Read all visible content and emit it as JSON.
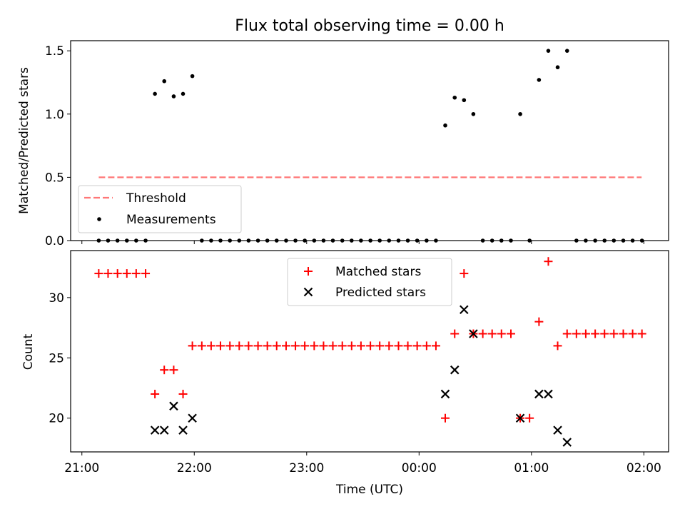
{
  "chart_data": [
    {
      "type": "scatter",
      "title": "Flux total observing time = 0.00 h",
      "xlabel": "",
      "ylabel": "Matched/Predicted stars",
      "ylim": [
        0,
        1.58
      ],
      "yticks": [
        0.0,
        0.5,
        1.0,
        1.5
      ],
      "ytick_labels": [
        "0.0",
        "0.5",
        "1.0",
        "1.5"
      ],
      "xticks_hours": [
        21,
        22,
        23,
        24,
        25,
        26
      ],
      "xlim_hours": [
        20.9,
        26.22
      ],
      "grid": false,
      "legend": "lower-left",
      "threshold": {
        "name": "Threshold",
        "value": 0.5,
        "x_range_hours": [
          21.15,
          25.98
        ],
        "color": "#ff7777"
      },
      "series": [
        {
          "name": "Measurements",
          "color": "#000000",
          "x_hours": [
            21.15,
            21.233,
            21.317,
            21.4,
            21.483,
            21.567,
            21.65,
            21.733,
            21.817,
            21.9,
            21.983,
            22.067,
            22.15,
            22.233,
            22.317,
            22.4,
            22.483,
            22.567,
            22.65,
            22.733,
            22.817,
            22.9,
            22.983,
            23.067,
            23.15,
            23.233,
            23.317,
            23.4,
            23.483,
            23.567,
            23.65,
            23.733,
            23.817,
            23.9,
            23.983,
            24.067,
            24.15,
            24.233,
            24.317,
            24.4,
            24.483,
            24.567,
            24.65,
            24.733,
            24.817,
            24.9,
            24.983,
            25.067,
            25.15,
            25.233,
            25.317,
            25.4,
            25.483,
            25.567,
            25.65,
            25.733,
            25.817,
            25.9,
            25.983
          ],
          "values": [
            0,
            0,
            0,
            0,
            0,
            0,
            1.16,
            1.26,
            1.14,
            1.16,
            1.3,
            0,
            0,
            0,
            0,
            0,
            0,
            0,
            0,
            0,
            0,
            0,
            0,
            0,
            0,
            0,
            0,
            0,
            0,
            0,
            0,
            0,
            0,
            0,
            0,
            0,
            0,
            0.91,
            1.13,
            1.11,
            1.0,
            0,
            0,
            0,
            0,
            1.0,
            0,
            1.27,
            1.5,
            1.37,
            1.5,
            0,
            0,
            0,
            0,
            0,
            0,
            0,
            0
          ]
        }
      ]
    },
    {
      "type": "scatter",
      "title": "",
      "xlabel": "Time (UTC)",
      "ylabel": "Count",
      "ylim": [
        17.2,
        33.9
      ],
      "yticks": [
        20,
        25,
        30
      ],
      "ytick_labels": [
        "20",
        "25",
        "30"
      ],
      "xticks_hours": [
        21,
        22,
        23,
        24,
        25,
        26
      ],
      "xtick_labels": [
        "21:00",
        "22:00",
        "23:00",
        "00:00",
        "01:00",
        "02:00"
      ],
      "xlim_hours": [
        20.9,
        26.22
      ],
      "grid": false,
      "legend": "top-center",
      "series": [
        {
          "name": "Matched stars",
          "marker": "+",
          "color": "#ff0000",
          "x_hours": [
            21.15,
            21.233,
            21.317,
            21.4,
            21.483,
            21.567,
            21.65,
            21.733,
            21.817,
            21.9,
            21.983,
            22.067,
            22.15,
            22.233,
            22.317,
            22.4,
            22.483,
            22.567,
            22.65,
            22.733,
            22.817,
            22.9,
            22.983,
            23.067,
            23.15,
            23.233,
            23.317,
            23.4,
            23.483,
            23.567,
            23.65,
            23.733,
            23.817,
            23.9,
            23.983,
            24.067,
            24.15,
            24.233,
            24.317,
            24.4,
            24.483,
            24.567,
            24.65,
            24.733,
            24.817,
            24.9,
            24.983,
            25.067,
            25.15,
            25.233,
            25.317,
            25.4,
            25.483,
            25.567,
            25.65,
            25.733,
            25.817,
            25.9,
            25.983
          ],
          "values": [
            32,
            32,
            32,
            32,
            32,
            32,
            22,
            24,
            24,
            22,
            26,
            26,
            26,
            26,
            26,
            26,
            26,
            26,
            26,
            26,
            26,
            26,
            26,
            26,
            26,
            26,
            26,
            26,
            26,
            26,
            26,
            26,
            26,
            26,
            26,
            26,
            26,
            20,
            27,
            32,
            27,
            27,
            27,
            27,
            27,
            20,
            20,
            28,
            33,
            26,
            27,
            27,
            27,
            27,
            27,
            27,
            27,
            27,
            27
          ]
        },
        {
          "name": "Predicted stars",
          "marker": "x",
          "color": "#000000",
          "x_hours": [
            21.65,
            21.733,
            21.817,
            21.9,
            21.983,
            24.233,
            24.317,
            24.4,
            24.483,
            24.9,
            25.067,
            25.15,
            25.233,
            25.317
          ],
          "values": [
            19,
            19,
            21,
            19,
            20,
            22,
            24,
            29,
            27,
            20,
            22,
            22,
            19,
            18
          ]
        }
      ]
    }
  ]
}
